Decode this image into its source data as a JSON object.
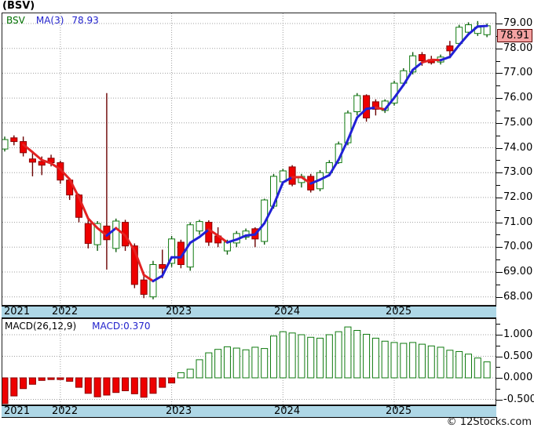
{
  "title": "(BSV)",
  "legend": {
    "symbol": "BSV",
    "ma_label": "MA(3)",
    "ma_value": "78.93"
  },
  "price_label": "78.91",
  "watermark": "© 12Stocks.com",
  "macd": {
    "label": "MACD(26,12,9)",
    "value_label": "MACD:0.370"
  },
  "colors": {
    "up_fill": "#ffffff",
    "up_stroke": "#0f7a0f",
    "up_wick": "#0f5c0f",
    "down_fill": "#ee0000",
    "down_stroke": "#8b0000",
    "down_wick": "#6b0000",
    "ma_up": "#2121d6",
    "ma_down": "#e32222",
    "grid": "#a0a0a0",
    "band_bg": "#aed7e6",
    "tag_bg": "#f4a2a2",
    "tag_border": "#5c0000",
    "macd_pos_stroke": "#0f7a0f",
    "macd_pos_fill": "#ffffff",
    "macd_neg_fill": "#ee0000",
    "macd_neg_stroke": "#8b0000"
  },
  "price_axis": {
    "ticks": [
      {
        "label": "79.00",
        "value": 79
      },
      {
        "label": "78.00",
        "value": 78
      },
      {
        "label": "77.00",
        "value": 77
      },
      {
        "label": "76.00",
        "value": 76
      },
      {
        "label": "75.00",
        "value": 75
      },
      {
        "label": "74.00",
        "value": 74
      },
      {
        "label": "73.00",
        "value": 73
      },
      {
        "label": "72.00",
        "value": 72
      },
      {
        "label": "71.00",
        "value": 71
      },
      {
        "label": "70.00",
        "value": 70
      },
      {
        "label": "69.00",
        "value": 69
      },
      {
        "label": "68.00",
        "value": 68
      }
    ]
  },
  "macd_axis": {
    "ticks": [
      {
        "label": "1.000",
        "value": 1
      },
      {
        "label": "0.500",
        "value": 0.5
      },
      {
        "label": "0.000",
        "value": 0
      },
      {
        "label": "-0.500",
        "value": -0.5
      }
    ]
  },
  "x_axis": {
    "years": [
      {
        "label": "2021",
        "label_x": 3,
        "grid_month": null
      },
      {
        "label": "2022",
        "label_x": 64,
        "grid_month": 6
      },
      {
        "label": "2023",
        "label_x": 209,
        "grid_month": 18
      },
      {
        "label": "2024",
        "label_x": 347,
        "grid_month": 30
      },
      {
        "label": "2025",
        "label_x": 489,
        "grid_month": 42
      }
    ]
  },
  "chart_data": {
    "type": "candlestick",
    "symbol": "BSV",
    "interval": "monthly",
    "start": "2021-07",
    "title": "(BSV)",
    "ylabel": "Price",
    "price_range": [
      68,
      79
    ],
    "grid": true,
    "ma_period": 3,
    "ma_direction_overrides": {
      "19": "up",
      "46": "down"
    },
    "ohlc": [
      [
        73.95,
        74.45,
        73.85,
        74.33
      ],
      [
        74.4,
        74.5,
        74.1,
        74.25
      ],
      [
        74.25,
        74.45,
        73.65,
        73.8
      ],
      [
        73.55,
        73.8,
        72.85,
        73.42
      ],
      [
        73.45,
        73.65,
        72.9,
        73.3
      ],
      [
        73.58,
        73.72,
        73.25,
        73.4
      ],
      [
        73.4,
        73.48,
        72.55,
        72.7
      ],
      [
        72.7,
        72.78,
        71.9,
        72.1
      ],
      [
        72.1,
        72.15,
        71.0,
        71.2
      ],
      [
        70.95,
        71.1,
        69.95,
        70.15
      ],
      [
        70.1,
        71.05,
        69.85,
        70.95
      ],
      [
        70.85,
        76.2,
        69.1,
        70.3
      ],
      [
        69.95,
        71.15,
        69.8,
        71.05
      ],
      [
        71.0,
        71.1,
        69.85,
        70.05
      ],
      [
        70.05,
        70.15,
        68.35,
        68.5
      ],
      [
        68.68,
        69.0,
        67.95,
        68.1
      ],
      [
        68.0,
        69.45,
        67.9,
        69.3
      ],
      [
        69.3,
        69.9,
        68.75,
        69.15
      ],
      [
        69.35,
        70.45,
        69.2,
        70.33
      ],
      [
        70.2,
        70.3,
        69.15,
        69.3
      ],
      [
        69.2,
        71.0,
        69.05,
        70.9
      ],
      [
        70.65,
        71.1,
        70.5,
        71.03
      ],
      [
        71.0,
        71.08,
        70.05,
        70.2
      ],
      [
        70.45,
        70.8,
        70.0,
        70.17
      ],
      [
        69.85,
        70.3,
        69.7,
        70.2
      ],
      [
        70.17,
        70.65,
        70.0,
        70.55
      ],
      [
        70.4,
        70.75,
        70.3,
        70.65
      ],
      [
        70.74,
        70.8,
        70.0,
        70.33
      ],
      [
        70.23,
        71.95,
        70.1,
        71.9
      ],
      [
        71.65,
        72.95,
        71.55,
        72.85
      ],
      [
        72.63,
        73.15,
        72.5,
        73.07
      ],
      [
        73.23,
        73.3,
        72.45,
        72.53
      ],
      [
        72.6,
        72.95,
        72.4,
        72.85
      ],
      [
        72.85,
        72.95,
        72.2,
        72.3
      ],
      [
        72.35,
        73.1,
        72.25,
        73.0
      ],
      [
        73.0,
        73.5,
        72.9,
        73.4
      ],
      [
        73.4,
        74.25,
        73.35,
        74.15
      ],
      [
        74.2,
        75.5,
        74.1,
        75.4
      ],
      [
        75.45,
        76.2,
        75.3,
        76.1
      ],
      [
        76.1,
        76.15,
        75.05,
        75.2
      ],
      [
        75.85,
        75.95,
        75.3,
        75.55
      ],
      [
        75.5,
        75.95,
        75.4,
        75.88
      ],
      [
        75.8,
        76.7,
        75.7,
        76.6
      ],
      [
        76.6,
        77.2,
        76.5,
        77.1
      ],
      [
        77.05,
        77.85,
        76.95,
        77.7
      ],
      [
        77.75,
        77.85,
        77.3,
        77.5
      ],
      [
        77.55,
        77.7,
        77.35,
        77.42
      ],
      [
        77.45,
        77.75,
        77.35,
        77.65
      ],
      [
        78.1,
        78.3,
        77.6,
        77.9
      ],
      [
        78.2,
        78.95,
        78.1,
        78.85
      ],
      [
        78.65,
        79.05,
        78.55,
        78.95
      ],
      [
        78.6,
        79.1,
        78.5,
        78.85
      ],
      [
        78.55,
        79.0,
        78.45,
        78.91
      ]
    ],
    "macd_histogram": [
      -0.6,
      -0.42,
      -0.25,
      -0.15,
      -0.06,
      -0.04,
      -0.04,
      -0.08,
      -0.22,
      -0.36,
      -0.44,
      -0.4,
      -0.34,
      -0.3,
      -0.37,
      -0.45,
      -0.36,
      -0.22,
      -0.12,
      0.12,
      0.2,
      0.42,
      0.58,
      0.66,
      0.72,
      0.69,
      0.65,
      0.71,
      0.68,
      0.97,
      1.07,
      1.04,
      1.0,
      0.94,
      0.92,
      1.0,
      1.07,
      1.18,
      1.1,
      1.01,
      0.92,
      0.85,
      0.82,
      0.8,
      0.82,
      0.78,
      0.74,
      0.71,
      0.64,
      0.61,
      0.55,
      0.46,
      0.37
    ],
    "macd_range": [
      -0.5,
      1.25
    ]
  }
}
